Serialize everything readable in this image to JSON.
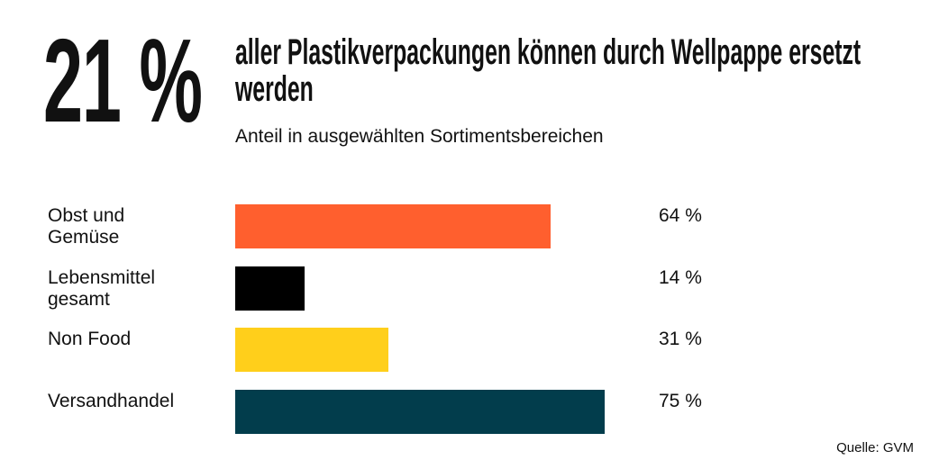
{
  "chart_data": {
    "type": "bar",
    "orientation": "horizontal",
    "headline": "21 %",
    "title": "aller Plastikverpackungen können durch Wellpappe ersetzt werden",
    "subtitle": "Anteil in ausgewählten Sortimentsbereichen",
    "categories": [
      "Obst und Gemüse",
      "Lebensmittel gesamt",
      "Non Food",
      "Versandhandel"
    ],
    "values": [
      64,
      14,
      31,
      75
    ],
    "value_labels": [
      "64 %",
      "14 %",
      "31 %",
      "75 %"
    ],
    "colors": [
      "#ff5f2e",
      "#000000",
      "#ffcf1b",
      "#023d4c"
    ],
    "source": "Quelle: GVM"
  }
}
